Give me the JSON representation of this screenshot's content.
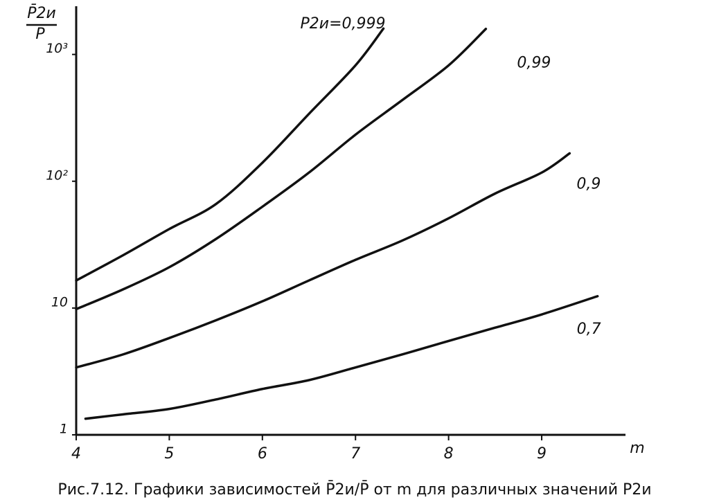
{
  "chart_data": {
    "type": "line",
    "ylabel": [
      "P̄2и",
      "P̄"
    ],
    "xlabel": "m",
    "caption": "Рис.7.12. Графики зависимостей P̄2и/P̄ от m для различных значений P2и",
    "log_y": true,
    "color": "#111111",
    "xlim": [
      4,
      9.9
    ],
    "ylim": [
      1,
      2400
    ],
    "xticks": [
      4,
      5,
      6,
      7,
      8,
      9
    ],
    "yticks": [
      1,
      10,
      {
        "value": 100,
        "label": "10²"
      },
      {
        "value": 1000,
        "label": "10³"
      }
    ],
    "series": [
      {
        "name": "P2и=0,999",
        "x": [
          4,
          4.5,
          5,
          5.5,
          6,
          6.5,
          7,
          7.3
        ],
        "values": [
          16.5,
          26,
          42,
          66,
          140,
          340,
          820,
          1600
        ]
      },
      {
        "name": "0,99",
        "x": [
          4,
          4.5,
          5,
          5.5,
          6,
          6.5,
          7,
          7.5,
          8,
          8.4
        ],
        "values": [
          9.8,
          14,
          21,
          35,
          63,
          117,
          233,
          435,
          820,
          1590
        ]
      },
      {
        "name": "0,9",
        "x": [
          4,
          4.5,
          5,
          5.5,
          6,
          6.5,
          7,
          7.5,
          8,
          8.5,
          9,
          9.3
        ],
        "values": [
          3.4,
          4.3,
          5.8,
          8,
          11.3,
          16.5,
          24,
          34,
          51,
          80,
          117,
          166
        ]
      },
      {
        "name": "0,7",
        "x": [
          4.1,
          4.5,
          5,
          5.5,
          6,
          6.5,
          7,
          7.5,
          8,
          8.5,
          9,
          9.6
        ],
        "values": [
          1.34,
          1.45,
          1.6,
          1.9,
          2.3,
          2.7,
          3.4,
          4.3,
          5.5,
          7,
          8.9,
          12.4
        ]
      }
    ]
  }
}
